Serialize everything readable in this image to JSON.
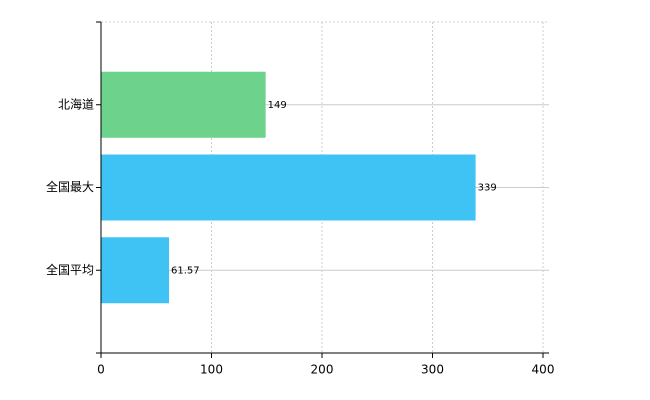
{
  "chart_data": {
    "type": "bar",
    "orientation": "horizontal",
    "categories": [
      "北海道",
      "全国最大",
      "全国平均"
    ],
    "values": [
      149,
      339,
      61.57
    ],
    "colors": [
      "#6dd38c",
      "#3fc3f5",
      "#3fc3f5"
    ],
    "xlim": [
      0,
      400
    ],
    "xticks": [
      0,
      100,
      200,
      300,
      400
    ],
    "grid": true
  }
}
